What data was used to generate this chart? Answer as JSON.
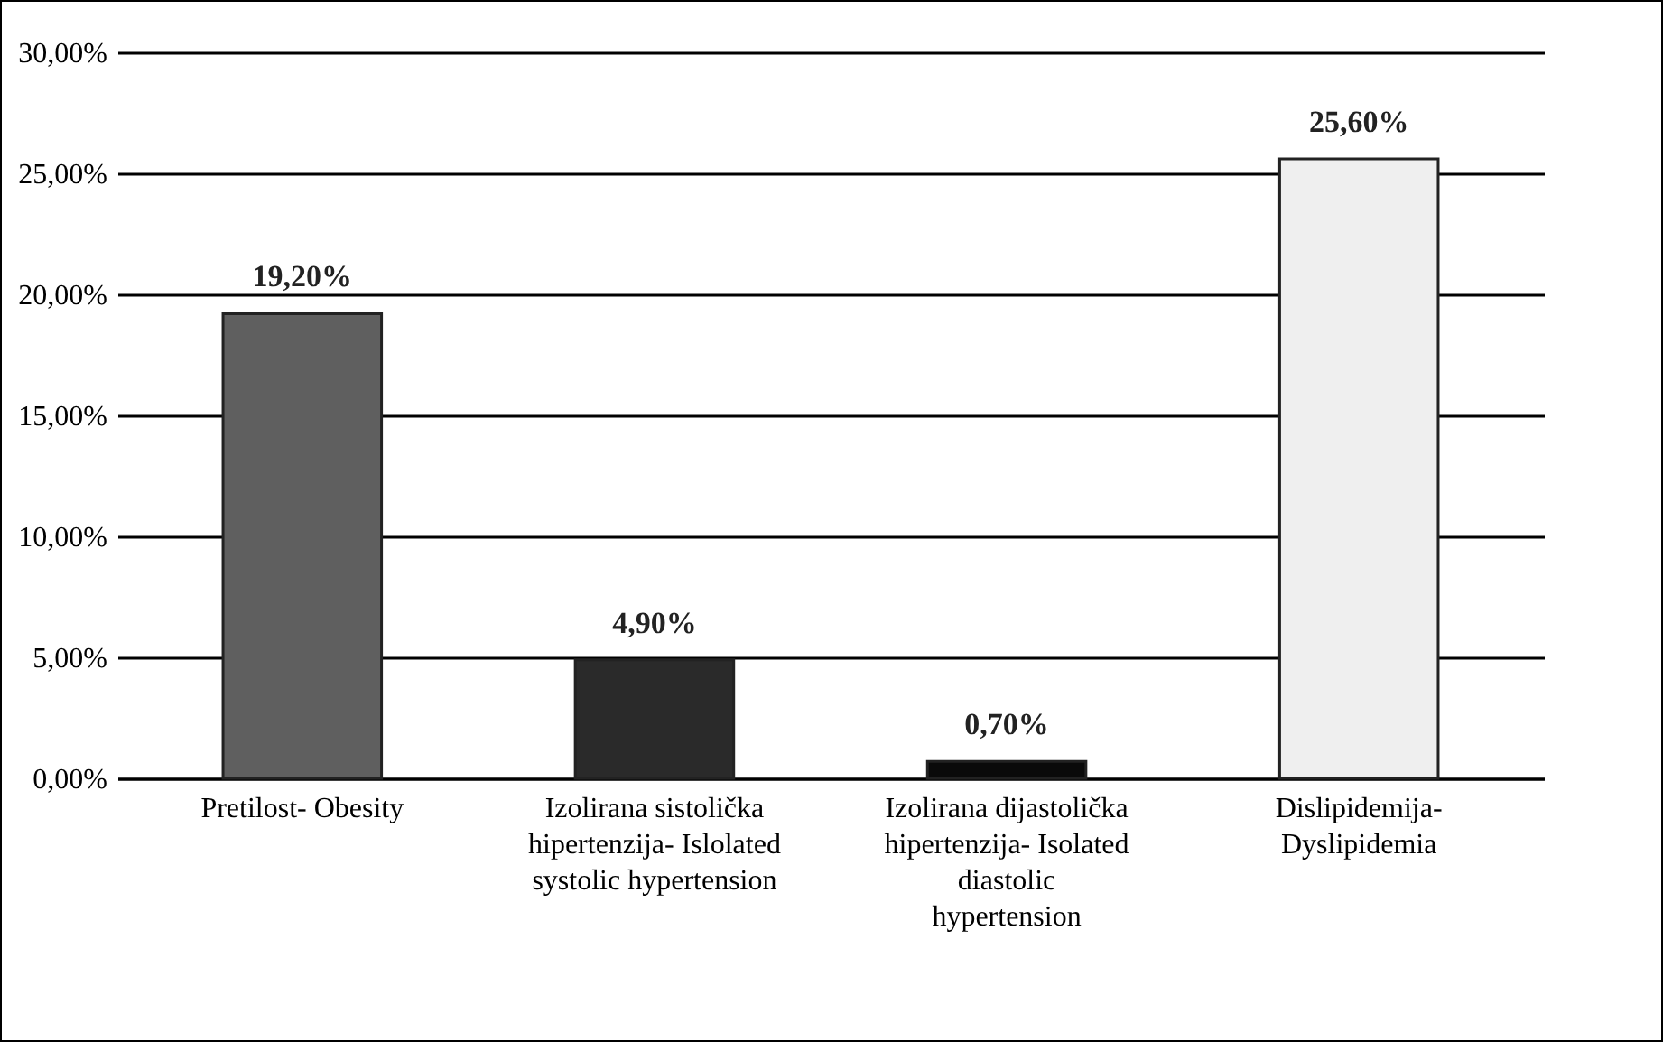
{
  "chart_data": {
    "type": "bar",
    "categories": [
      "Pretilost- Obesity",
      "Izolirana sistolička hipertenzija- Islolated systolic hypertension",
      "Izolirana dijastolička hipertenzija- Isolated diastolic hypertension",
      "Dislipidemija- Dyslipidemia"
    ],
    "values": [
      19.2,
      4.9,
      0.7,
      25.6
    ],
    "colors": [
      "#5f5f5f",
      "#2a2a2a",
      "#0a0a0a",
      "#efefef"
    ],
    "value_labels": [
      "19,20%",
      "4,90%",
      "0,70%",
      "25,60%"
    ],
    "ylim": [
      0,
      30
    ],
    "yticks": [
      {
        "value": 0,
        "label": "0,00%"
      },
      {
        "value": 5,
        "label": "5,00%"
      },
      {
        "value": 10,
        "label": "10,00%"
      },
      {
        "value": 15,
        "label": "15,00%"
      },
      {
        "value": 20,
        "label": "20,00%"
      },
      {
        "value": 25,
        "label": "25,00%"
      },
      {
        "value": 30,
        "label": "30,00%"
      }
    ],
    "grid": "y"
  }
}
